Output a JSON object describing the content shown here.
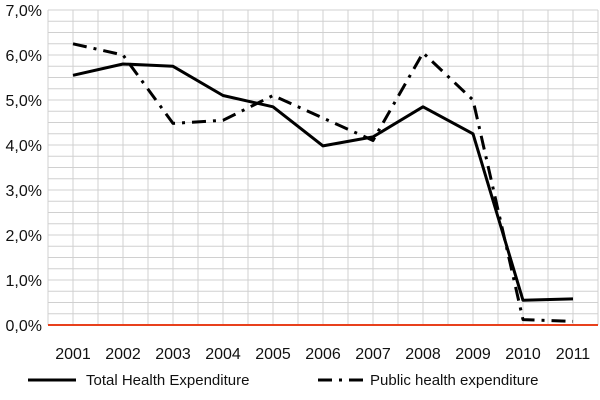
{
  "chart_data": {
    "type": "line",
    "categories": [
      "2001",
      "2002",
      "2003",
      "2004",
      "2005",
      "2006",
      "2007",
      "2008",
      "2009",
      "2010",
      "2011"
    ],
    "y_tick_labels": [
      "0,0%",
      "1,0%",
      "2,0%",
      "3,0%",
      "4,0%",
      "5,0%",
      "6,0%",
      "7,0%"
    ],
    "ylim": [
      0,
      7
    ],
    "grid": true,
    "legend_position": "bottom",
    "series": [
      {
        "name": "Total Health Expenditure",
        "style": "solid",
        "color": "#000000",
        "values": [
          5.55,
          5.8,
          5.75,
          5.1,
          4.85,
          3.98,
          4.18,
          4.85,
          4.25,
          0.55,
          0.58
        ]
      },
      {
        "name": "Public health expenditure",
        "style": "dash-dot",
        "color": "#000000",
        "values": [
          6.25,
          6.0,
          4.48,
          4.55,
          5.1,
          4.6,
          4.1,
          6.05,
          5.0,
          0.12,
          0.08
        ]
      }
    ],
    "zero_line_color": "#e8401c",
    "grid_color": "#d0d0d0"
  }
}
